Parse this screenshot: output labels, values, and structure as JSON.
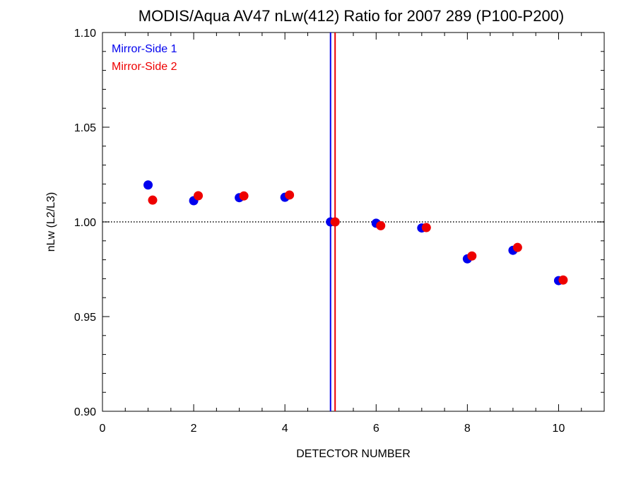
{
  "chart_data": {
    "type": "scatter",
    "title": "MODIS/Aqua AV47 nLw(412) Ratio for 2007 289 (P100-P200)",
    "xlabel": "DETECTOR NUMBER",
    "ylabel": "nLw (L2/L3)",
    "xlim": [
      0,
      11
    ],
    "ylim": [
      0.9,
      1.1
    ],
    "xticks": [
      0,
      2,
      4,
      6,
      8,
      10
    ],
    "xtick_labels": [
      "0",
      "2",
      "4",
      "6",
      "8",
      "10"
    ],
    "yticks": [
      0.9,
      0.95,
      1.0,
      1.05,
      1.1
    ],
    "ytick_labels": [
      "0.90",
      "0.95",
      "1.00",
      "1.05",
      "1.10"
    ],
    "reference_line_y": 1.0,
    "vertical_lines": [
      {
        "x": 5.0,
        "color": "#0000ee"
      },
      {
        "x": 5.1,
        "color": "#ee0000"
      }
    ],
    "legend_position": "top-left",
    "series": [
      {
        "name": "Mirror-Side 1",
        "color": "#0000ee",
        "x": [
          1,
          2,
          3,
          4,
          5,
          6,
          7,
          8,
          9,
          10
        ],
        "y": [
          1.0195,
          1.0112,
          1.0128,
          1.013,
          1.0,
          0.9993,
          0.9968,
          0.9805,
          0.985,
          0.969
        ]
      },
      {
        "name": "Mirror-Side 2",
        "color": "#ee0000",
        "x": [
          1.1,
          2.1,
          3.1,
          4.1,
          5.1,
          6.1,
          7.1,
          8.1,
          9.1,
          10.1
        ],
        "y": [
          1.0115,
          1.0138,
          1.0137,
          1.0142,
          1.0,
          0.998,
          0.997,
          0.982,
          0.9865,
          0.9693
        ]
      }
    ]
  }
}
